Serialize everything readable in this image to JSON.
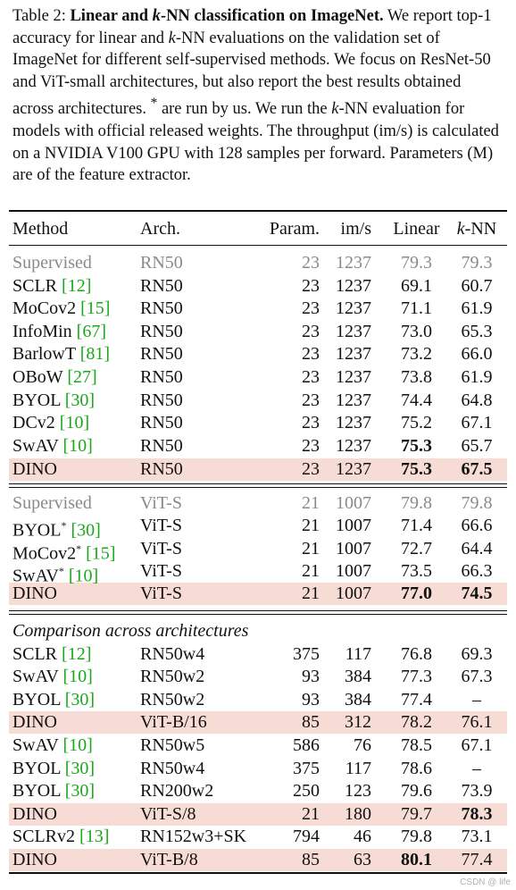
{
  "caption": {
    "label": "Table 2:",
    "title_pre": "Linear and ",
    "title_k": "k",
    "title_post": "-NN classification on ImageNet.",
    "s1": " We report top-1 accuracy for linear and ",
    "k1": "k",
    "s2": "-NN evaluations on the validation set of ImageNet for different self-supervised methods. We focus on ResNet-50 and ViT-small architectures, but also report the best results obtained across architectures. ",
    "star": "*",
    "s3": " are run by us. We run the ",
    "k2": "k",
    "s4": "-NN evaluation for models with official released weights. The throughput (im/s) is calculated on a NVIDIA V100 GPU with 128 samples per forward. Parameters (M) are of the feature extractor."
  },
  "header": {
    "method": "Method",
    "arch": "Arch.",
    "param": "Param.",
    "ims": "im/s",
    "linear": "Linear",
    "knn_k": "k",
    "knn_rest": "-NN"
  },
  "section3_title": "Comparison across architectures",
  "rows": [
    {
      "method": "Supervised",
      "ref": "",
      "star": "",
      "arch": "RN50",
      "param": "23",
      "ims": "1237",
      "linear": "79.3",
      "knn": "79.3"
    },
    {
      "method": "SCLR",
      "ref": "[12]",
      "star": "",
      "arch": "RN50",
      "param": "23",
      "ims": "1237",
      "linear": "69.1",
      "knn": "60.7"
    },
    {
      "method": "MoCov2",
      "ref": "[15]",
      "star": "",
      "arch": "RN50",
      "param": "23",
      "ims": "1237",
      "linear": "71.1",
      "knn": "61.9"
    },
    {
      "method": "InfoMin",
      "ref": "[67]",
      "star": "",
      "arch": "RN50",
      "param": "23",
      "ims": "1237",
      "linear": "73.0",
      "knn": "65.3"
    },
    {
      "method": "BarlowT",
      "ref": "[81]",
      "star": "",
      "arch": "RN50",
      "param": "23",
      "ims": "1237",
      "linear": "73.2",
      "knn": "66.0"
    },
    {
      "method": "OBoW",
      "ref": "[27]",
      "star": "",
      "arch": "RN50",
      "param": "23",
      "ims": "1237",
      "linear": "73.8",
      "knn": "61.9"
    },
    {
      "method": "BYOL",
      "ref": "[30]",
      "star": "",
      "arch": "RN50",
      "param": "23",
      "ims": "1237",
      "linear": "74.4",
      "knn": "64.8"
    },
    {
      "method": "DCv2",
      "ref": "[10]",
      "star": "",
      "arch": "RN50",
      "param": "23",
      "ims": "1237",
      "linear": "75.2",
      "knn": "67.1"
    },
    {
      "method": "SwAV",
      "ref": "[10]",
      "star": "",
      "arch": "RN50",
      "param": "23",
      "ims": "1237",
      "linear": "75.3",
      "knn": "65.7"
    },
    {
      "method": "DINO",
      "ref": "",
      "star": "",
      "arch": "RN50",
      "param": "23",
      "ims": "1237",
      "linear": "75.3",
      "knn": "67.5"
    },
    {
      "method": "Supervised",
      "ref": "",
      "star": "",
      "arch": "ViT-S",
      "param": "21",
      "ims": "1007",
      "linear": "79.8",
      "knn": "79.8"
    },
    {
      "method": "BYOL",
      "ref": "[30]",
      "star": "*",
      "arch": "ViT-S",
      "param": "21",
      "ims": "1007",
      "linear": "71.4",
      "knn": "66.6"
    },
    {
      "method": "MoCov2",
      "ref": "[15]",
      "star": "*",
      "arch": "ViT-S",
      "param": "21",
      "ims": "1007",
      "linear": "72.7",
      "knn": "64.4"
    },
    {
      "method": "SwAV",
      "ref": "[10]",
      "star": "*",
      "arch": "ViT-S",
      "param": "21",
      "ims": "1007",
      "linear": "73.5",
      "knn": "66.3"
    },
    {
      "method": "DINO",
      "ref": "",
      "star": "",
      "arch": "ViT-S",
      "param": "21",
      "ims": "1007",
      "linear": "77.0",
      "knn": "74.5"
    },
    {
      "method": "SCLR",
      "ref": "[12]",
      "star": "",
      "arch": "RN50w4",
      "param": "375",
      "ims": "117",
      "linear": "76.8",
      "knn": "69.3"
    },
    {
      "method": "SwAV",
      "ref": "[10]",
      "star": "",
      "arch": "RN50w2",
      "param": "93",
      "ims": "384",
      "linear": "77.3",
      "knn": "67.3"
    },
    {
      "method": "BYOL",
      "ref": "[30]",
      "star": "",
      "arch": "RN50w2",
      "param": "93",
      "ims": "384",
      "linear": "77.4",
      "knn": "–"
    },
    {
      "method": "DINO",
      "ref": "",
      "star": "",
      "arch": "ViT-B/16",
      "param": "85",
      "ims": "312",
      "linear": "78.2",
      "knn": "76.1"
    },
    {
      "method": "SwAV",
      "ref": "[10]",
      "star": "",
      "arch": "RN50w5",
      "param": "586",
      "ims": "76",
      "linear": "78.5",
      "knn": "67.1"
    },
    {
      "method": "BYOL",
      "ref": "[30]",
      "star": "",
      "arch": "RN50w4",
      "param": "375",
      "ims": "117",
      "linear": "78.6",
      "knn": "–"
    },
    {
      "method": "BYOL",
      "ref": "[30]",
      "star": "",
      "arch": "RN200w2",
      "param": "250",
      "ims": "123",
      "linear": "79.6",
      "knn": "73.9"
    },
    {
      "method": "DINO",
      "ref": "",
      "star": "",
      "arch": "ViT-S/8",
      "param": "21",
      "ims": "180",
      "linear": "79.7",
      "knn": "78.3"
    },
    {
      "method": "SCLRv2",
      "ref": "[13]",
      "star": "",
      "arch": "RN152w3+SK",
      "param": "794",
      "ims": "46",
      "linear": "79.8",
      "knn": "73.1"
    },
    {
      "method": "DINO",
      "ref": "",
      "star": "",
      "arch": "ViT-B/8",
      "param": "85",
      "ims": "63",
      "linear": "80.1",
      "knn": "77.4"
    }
  ],
  "watermark": "CSDN @ life"
}
